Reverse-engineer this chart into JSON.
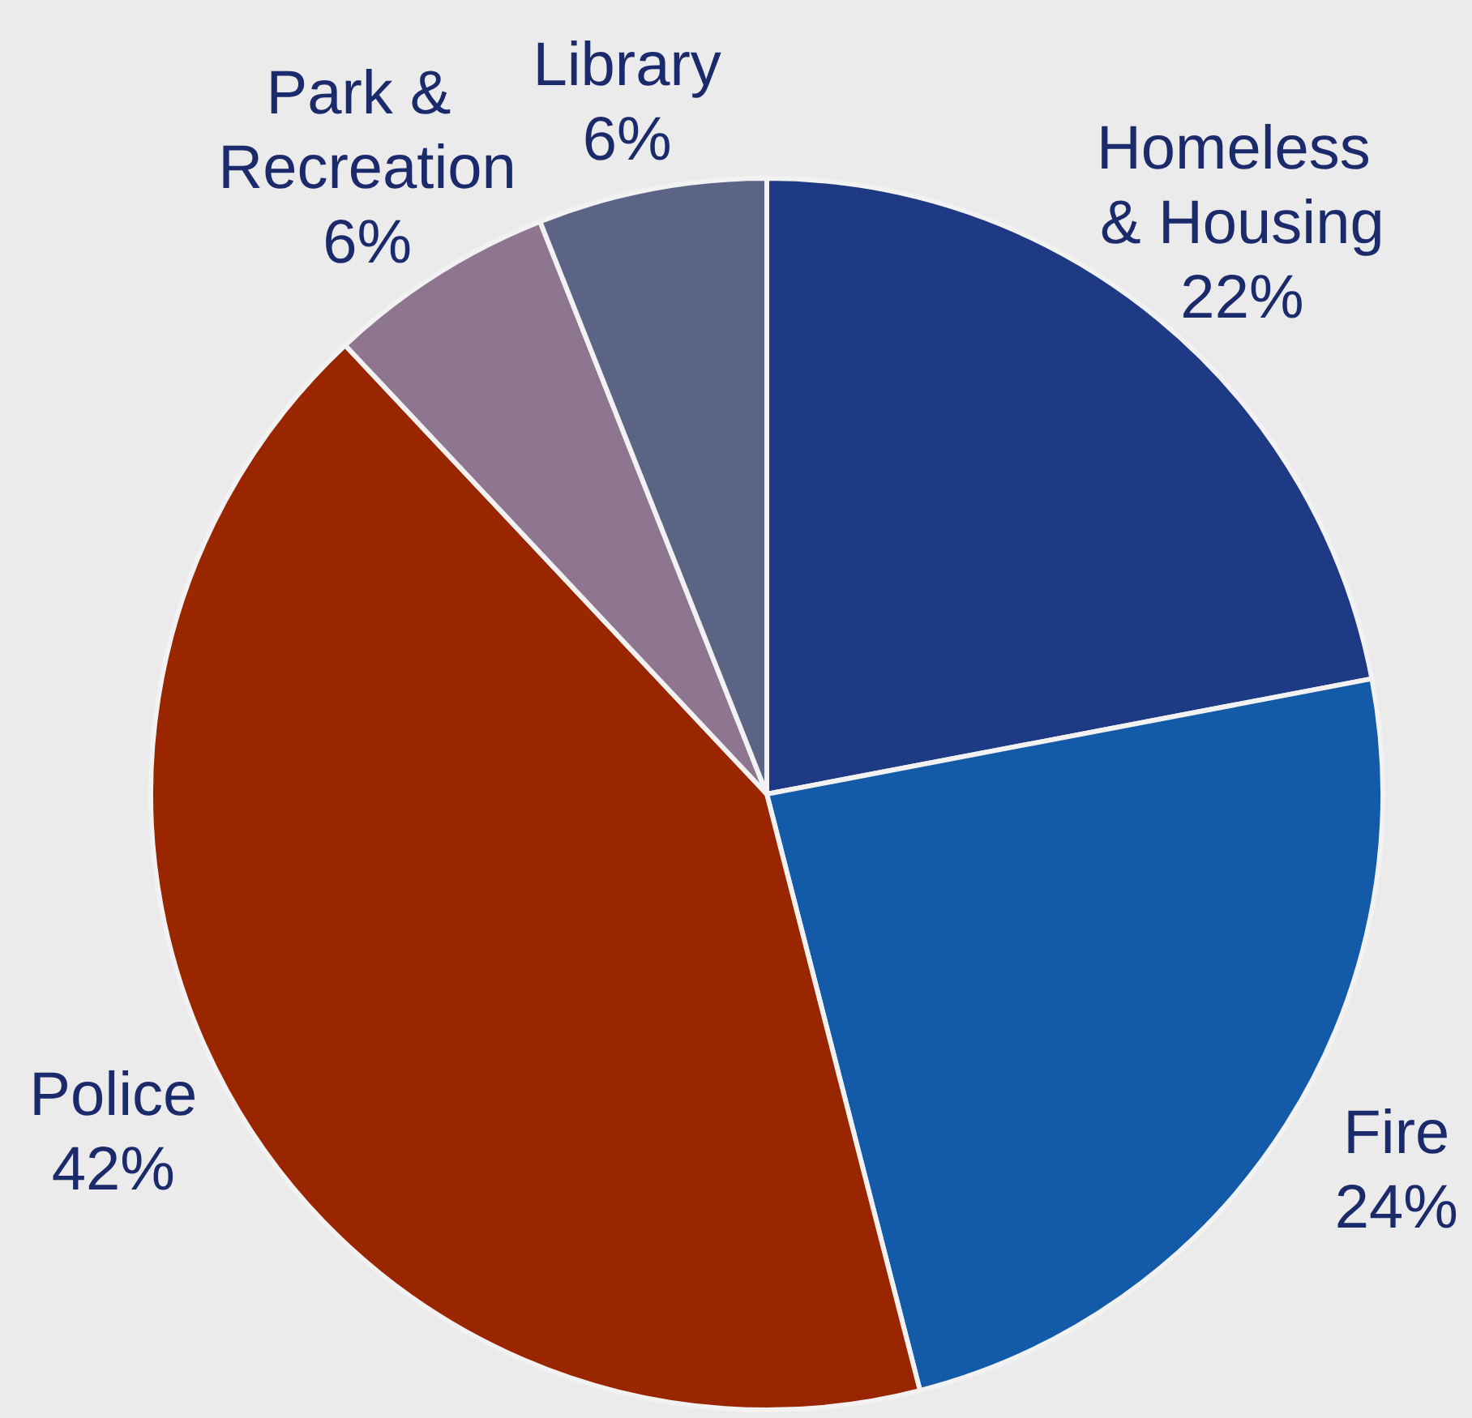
{
  "chart_data": {
    "type": "pie",
    "categories": [
      "Homeless & Housing",
      "Fire",
      "Police",
      "Park & Recreation",
      "Library"
    ],
    "values": [
      22,
      24,
      42,
      6,
      6
    ],
    "value_labels": [
      "22%",
      "24%",
      "42%",
      "6%",
      "6%"
    ],
    "colors": [
      "#1f3a85",
      "#135aa8",
      "#9a2600",
      "#8e7690",
      "#5b6485"
    ],
    "legend": false
  }
}
